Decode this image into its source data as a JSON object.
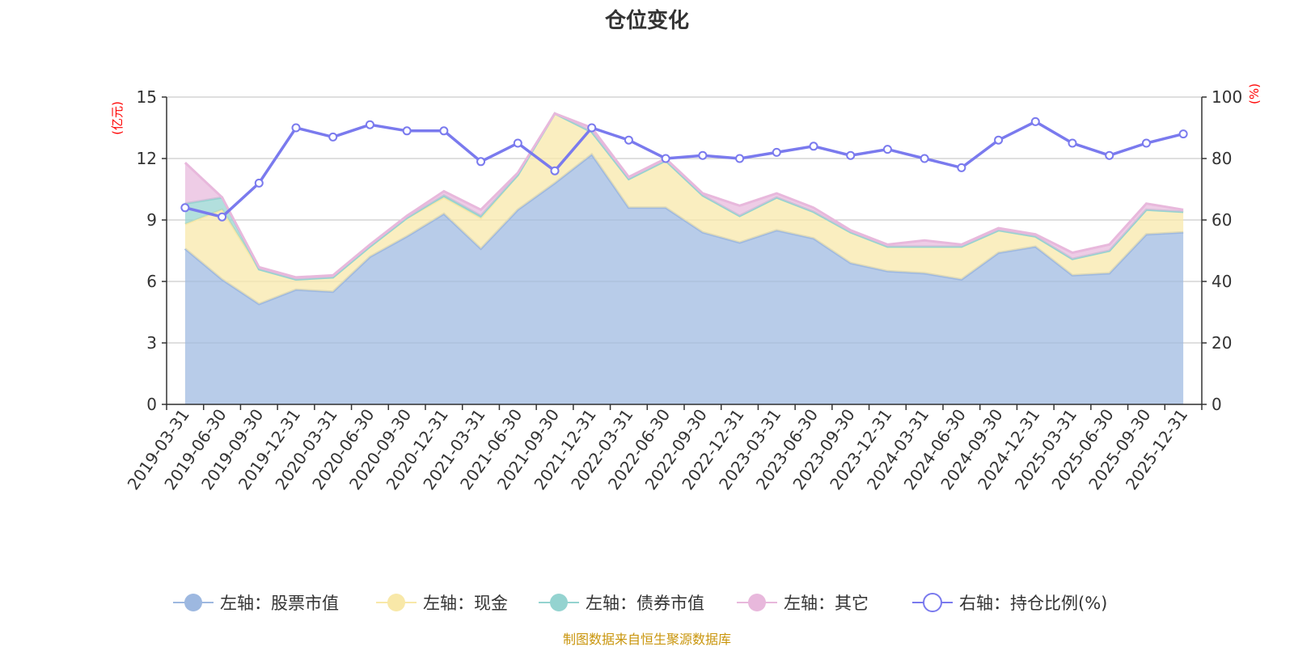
{
  "chart_data": {
    "type": "area",
    "title": "仓位变化",
    "left_axis_unit": "(亿元)",
    "right_axis_unit": "(%)",
    "left_ylim": [
      0,
      15
    ],
    "left_ticks": [
      0,
      3,
      6,
      9,
      12,
      15
    ],
    "right_ylim": [
      0,
      100
    ],
    "right_ticks": [
      0,
      20,
      40,
      60,
      80,
      100
    ],
    "categories": [
      "2019-03-31",
      "2019-06-30",
      "2019-09-30",
      "2019-12-31",
      "2020-03-31",
      "2020-06-30",
      "2020-09-30",
      "2020-12-31",
      "2021-03-31",
      "2021-06-30",
      "2021-09-30",
      "2021-12-31",
      "2022-03-31",
      "2022-06-30",
      "2022-09-30",
      "2022-12-31",
      "2023-03-31",
      "2023-06-30",
      "2023-09-30",
      "2023-12-31",
      "2024-03-31",
      "2024-06-30",
      "2024-09-30",
      "2024-12-31",
      "2025-03-31",
      "2025-06-30",
      "2025-09-30",
      "2025-12-31"
    ],
    "series": [
      {
        "name": "左轴：股票市值",
        "axis": "left",
        "color": "#9db8e0",
        "values": [
          7.6,
          6.1,
          4.9,
          5.6,
          5.5,
          7.2,
          8.2,
          9.3,
          7.6,
          9.5,
          10.8,
          12.2,
          9.6,
          9.6,
          8.4,
          7.9,
          8.5,
          8.1,
          6.9,
          6.5,
          6.4,
          6.1,
          7.4,
          7.7,
          6.3,
          6.4,
          8.3,
          8.4
        ]
      },
      {
        "name": "左轴：现金",
        "axis": "left",
        "color": "#f8e8a8",
        "values": [
          1.2,
          3.4,
          1.7,
          0.5,
          0.7,
          0.5,
          0.9,
          0.8,
          1.5,
          1.7,
          3.4,
          1.1,
          1.4,
          2.3,
          1.8,
          1.3,
          1.6,
          1.3,
          1.5,
          1.2,
          1.3,
          1.6,
          1.1,
          0.5,
          0.8,
          1.1,
          1.2,
          1.0
        ]
      },
      {
        "name": "左轴：债券市值",
        "axis": "left",
        "color": "#94d3d0",
        "values": [
          1.0,
          0.6,
          0.0,
          0.0,
          0.0,
          0.0,
          0.0,
          0.1,
          0.1,
          0.0,
          0.0,
          0.0,
          0.0,
          0.0,
          0.0,
          0.0,
          0.0,
          0.0,
          0.0,
          0.0,
          0.0,
          0.0,
          0.0,
          0.0,
          0.0,
          0.0,
          0.0,
          0.0
        ]
      },
      {
        "name": "左轴：其它",
        "axis": "left",
        "color": "#e8b8dc",
        "values": [
          2.0,
          0.0,
          0.1,
          0.1,
          0.1,
          0.1,
          0.1,
          0.2,
          0.3,
          0.1,
          0.0,
          0.2,
          0.1,
          0.1,
          0.1,
          0.5,
          0.2,
          0.2,
          0.1,
          0.1,
          0.3,
          0.1,
          0.1,
          0.1,
          0.3,
          0.3,
          0.3,
          0.1
        ]
      },
      {
        "name": "右轴：持仓比例(%)",
        "axis": "right",
        "color": "#7a7aee",
        "values": [
          64,
          61,
          72,
          90,
          87,
          91,
          89,
          89,
          79,
          85,
          76,
          90,
          86,
          80,
          81,
          80,
          82,
          84,
          81,
          83,
          80,
          77,
          86,
          92,
          85,
          81,
          85,
          88
        ]
      }
    ]
  },
  "legend": [
    "左轴：股票市值",
    "左轴：现金",
    "左轴：债券市值",
    "左轴：其它",
    "右轴：持仓比例(%)"
  ],
  "source_note": "制图数据来自恒生聚源数据库"
}
